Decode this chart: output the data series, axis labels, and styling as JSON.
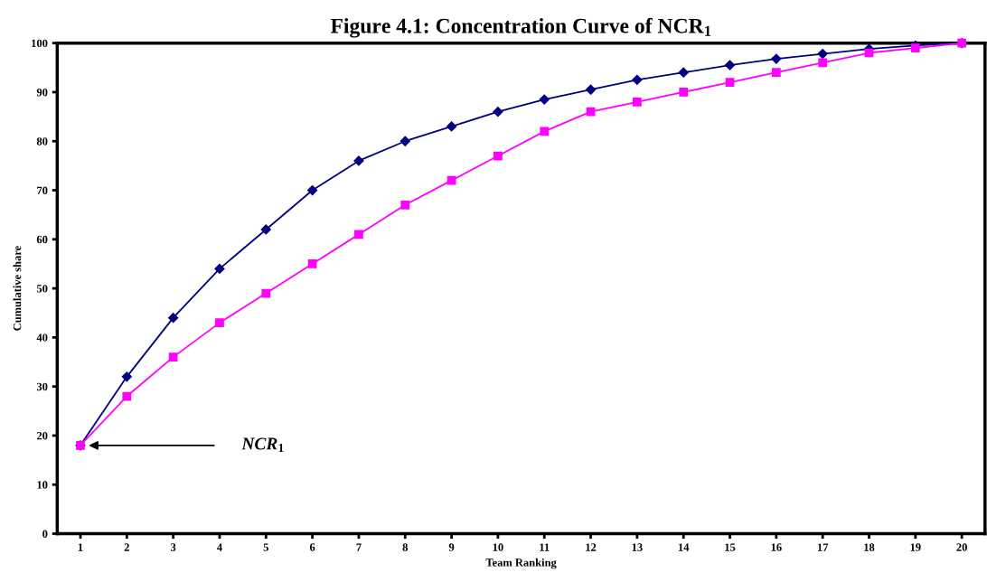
{
  "chart_data": {
    "type": "line",
    "title": "Figure 4.1: Concentration Curve of NCR$_{1}$",
    "xlabel": "Team Ranking",
    "ylabel": "Cumulative share",
    "categories": [
      "1",
      "2",
      "3",
      "4",
      "5",
      "6",
      "7",
      "8",
      "9",
      "10",
      "11",
      "12",
      "13",
      "14",
      "15",
      "16",
      "17",
      "18",
      "19",
      "20"
    ],
    "series": [
      {
        "color": "#000080",
        "marker": "diamond",
        "values": [
          18,
          32,
          44,
          54,
          62,
          70,
          76,
          80,
          83,
          86,
          88.5,
          90.5,
          92.5,
          94,
          95.5,
          96.8,
          97.8,
          98.8,
          99.5,
          100
        ]
      },
      {
        "color": "#ff00ff",
        "marker": "square",
        "values": [
          18,
          28,
          36,
          43,
          49,
          55,
          61,
          67,
          72,
          77,
          82,
          86,
          88,
          90,
          92,
          94,
          96,
          98,
          99,
          100
        ]
      }
    ],
    "ylim": [
      0,
      100
    ],
    "yticks": [
      0,
      10,
      20,
      30,
      40,
      50,
      60,
      70,
      80,
      90,
      100
    ],
    "grid": false,
    "line_style": "solid",
    "annotations": [
      "NCR$_{1}$"
    ]
  }
}
